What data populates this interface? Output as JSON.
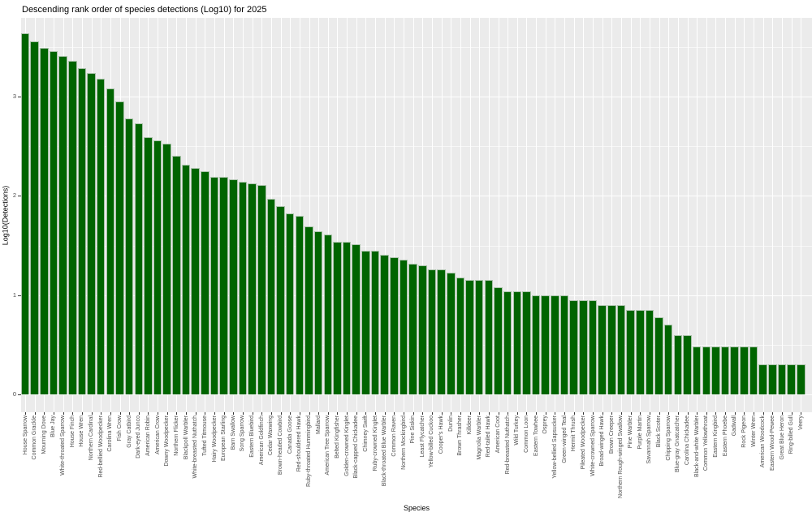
{
  "title": "Descending rank order of species detections (Log10) for 2025",
  "chart_data": {
    "type": "bar",
    "title": "Descending rank order of species detections (Log10) for 2025",
    "xlabel": "Species",
    "ylabel": "Log10(Detections)",
    "ylim": [
      0,
      3.8
    ],
    "yticks": [
      0,
      1,
      2,
      3
    ],
    "yminor": [
      0.5,
      1.5,
      2.5,
      3.5
    ],
    "legend": "none",
    "grid": "white horizontal major+minor, white vertical per category, gray panel",
    "bar_color": "#006400",
    "bar_edge_color": "#a9c2a9",
    "panel_bg": "#EBEBEB",
    "categories": [
      "House Sparrow",
      "Common Grackle",
      "Mourning Dove",
      "Blue Jay",
      "White-throated Sparrow",
      "House Finch",
      "House Wren",
      "Northern Cardinal",
      "Red-bellied Woodpecker",
      "Carolina Wren",
      "Fish Crow",
      "Gray Catbird",
      "Dark-eyed Junco",
      "American Robin",
      "American Crow",
      "Downy Woodpecker",
      "Northern Flicker",
      "Blackpoll Warbler",
      "White-breasted Nuthatch",
      "Tufted Titmouse",
      "Hairy Woodpecker",
      "European Starling",
      "Barn Swallow",
      "Song Sparrow",
      "Eastern Bluebird",
      "American Goldfinch",
      "Cedar Waxwing",
      "Brown-headed Cowbird",
      "Canada Goose",
      "Red-shouldered Hawk",
      "Ruby-throated Hummingbird",
      "Mallard",
      "American Tree Sparrow",
      "Belted Kingfisher",
      "Golden-crowned Kinglet",
      "Black-capped Chickadee",
      "Chimney Swift",
      "Ruby-crowned Kinglet",
      "Black-throated Blue Warbler",
      "Common Raven",
      "Northern Mockingbird",
      "Pine Siskin",
      "Least Flycatcher",
      "Yellow-billed Cuckoo",
      "Cooper's Hawk",
      "Dunlin",
      "Brown Thrasher",
      "Killdeer",
      "Magnolia Warbler",
      "Red-tailed Hawk",
      "American Coot",
      "Red-breasted Nuthatch",
      "Wild Turkey",
      "Common Loon",
      "Eastern Towhee",
      "Osprey",
      "Yellow-bellied Sapsucker",
      "Green-winged Teal",
      "Hermit Thrush",
      "Pileated Woodpecker",
      "White-crowned Sparrow",
      "Broad-winged Hawk",
      "Brown Creeper",
      "Northern Rough-winged Swallow",
      "Pine Warbler",
      "Purple Martin",
      "Savannah Sparrow",
      "Black Scoter",
      "Chipping Sparrow",
      "Blue-gray Gnatcatcher",
      "Carolina Chickadee",
      "Black-and-white Warbler",
      "Common Yellowthroat",
      "Eastern Kingbird",
      "Eastern Phoebe",
      "Gadwall",
      "Rock Pigeon",
      "Winter Wren",
      "American Woodcock",
      "Eastern Wood-Pewee",
      "Great Blue Heron",
      "Ring-billed Gull",
      "Veery"
    ],
    "values": [
      3.64,
      3.56,
      3.49,
      3.46,
      3.41,
      3.36,
      3.29,
      3.24,
      3.18,
      3.08,
      2.95,
      2.78,
      2.73,
      2.59,
      2.56,
      2.53,
      2.4,
      2.31,
      2.28,
      2.25,
      2.19,
      2.19,
      2.17,
      2.14,
      2.13,
      2.11,
      1.97,
      1.9,
      1.82,
      1.8,
      1.69,
      1.64,
      1.61,
      1.54,
      1.54,
      1.51,
      1.45,
      1.45,
      1.41,
      1.38,
      1.36,
      1.32,
      1.3,
      1.26,
      1.26,
      1.23,
      1.18,
      1.15,
      1.15,
      1.15,
      1.08,
      1.04,
      1.04,
      1.04,
      1.0,
      1.0,
      1.0,
      1.0,
      0.95,
      0.95,
      0.95,
      0.9,
      0.9,
      0.9,
      0.85,
      0.85,
      0.85,
      0.78,
      0.7,
      0.6,
      0.6,
      0.48,
      0.48,
      0.48,
      0.48,
      0.48,
      0.48,
      0.48,
      0.3,
      0.3,
      0.3,
      0.3,
      0.3
    ]
  }
}
